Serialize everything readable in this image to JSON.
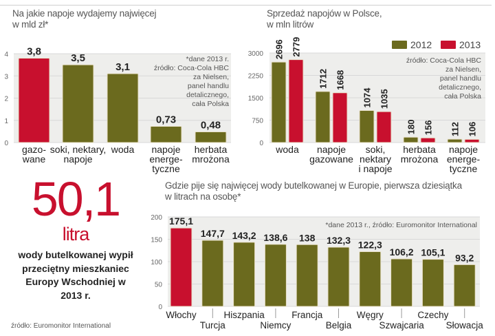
{
  "colors": {
    "olive": "#6b6a1e",
    "red": "#c8102e",
    "plot_bg": "#eeeeec",
    "grid": "#d8d8d8",
    "axis_text": "#666666"
  },
  "chart_data": [
    {
      "type": "bar",
      "title": "Na jakie napoje wydajemy najwięcej",
      "subtitle": "w mld zł*",
      "categories": [
        "gazo-\nwane",
        "soki, nektary,\nnapoje",
        "woda",
        "napoje\nenerge-\ntyczne",
        "herbata\nmrożona"
      ],
      "values": [
        3.8,
        3.5,
        3.1,
        0.73,
        0.48
      ],
      "value_labels": [
        "3,8",
        "3,5",
        "3,1",
        "0,73",
        "0,48"
      ],
      "highlight": [
        true,
        false,
        false,
        false,
        false
      ],
      "yticks": [
        0,
        1,
        2,
        3,
        4
      ],
      "ylim": [
        0,
        4
      ],
      "note": [
        "*dane 2013 r.",
        "źródło: Coca-Cola HBC",
        "za Nielsen,",
        "panel handlu",
        "detalicznego,",
        "cała Polska"
      ],
      "xlabel": "",
      "ylabel": "",
      "grid": true
    },
    {
      "type": "bar",
      "title": "Sprzedaż napojów w Polsce,",
      "subtitle": "w mln litrów",
      "categories": [
        "woda",
        "napoje\ngazowane",
        "soki,\nnektary\ni napoje",
        "herbata\nmrożona",
        "napoje\nenerge-\ntyczne"
      ],
      "series": [
        {
          "name": "2012",
          "values": [
            2696,
            1712,
            1074,
            180,
            112
          ]
        },
        {
          "name": "2013",
          "values": [
            2779,
            1668,
            1035,
            156,
            106
          ]
        }
      ],
      "yticks": [
        0,
        750,
        1500,
        2250,
        3000
      ],
      "ylim": [
        0,
        3000
      ],
      "legend": "top-right",
      "note": [
        "źródło: Coca-Cola HBC",
        "za Nielsen,",
        "panel handlu",
        "detalicznego,",
        "cała Polska"
      ],
      "xlabel": "",
      "ylabel": "",
      "grid": true
    },
    {
      "type": "bar",
      "title": "Gdzie pije się najwięcej wody butelkowanej w Europie, pierwsza dziesiątka",
      "subtitle": "w litrach na osobę*",
      "categories": [
        "Włochy",
        "Turcja",
        "Hiszpania",
        "Niemcy",
        "Francja",
        "Belgia",
        "Węgry",
        "Szwajcaria",
        "Czechy",
        "Słowacja"
      ],
      "values": [
        175.1,
        147.7,
        143.2,
        138.6,
        138,
        132.3,
        122.3,
        106.2,
        105.1,
        93.2
      ],
      "value_labels": [
        "175,1",
        "147,7",
        "143,2",
        "138,6",
        "138",
        "132,3",
        "122,3",
        "106,2",
        "105,1",
        "93,2"
      ],
      "highlight": [
        true,
        false,
        false,
        false,
        false,
        false,
        false,
        false,
        false,
        false
      ],
      "yticks": [
        0,
        50,
        100,
        150,
        200
      ],
      "ylim": [
        0,
        200
      ],
      "note": [
        "*dane 2013 r., źródło: Euromonitor International"
      ],
      "xlabel": "",
      "ylabel": "",
      "grid": true
    }
  ],
  "callout": {
    "number": "50,1",
    "unit": "litra",
    "text": "wody butelkowanej wypił przeciętny mieszkaniec Europy Wschodniej w 2013 r.",
    "source": "źródło: Euromonitor International"
  }
}
